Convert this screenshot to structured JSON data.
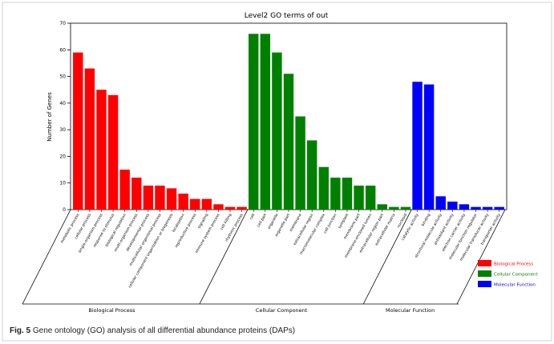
{
  "caption": {
    "label": "Fig. 5",
    "text": "Gene ontology (GO) analysis of all differential abundance proteins (DAPs)"
  },
  "colors": {
    "Biological Process": "#ff0000",
    "Cellular Component": "#008000",
    "Molecular Function": "#0000ff"
  },
  "chart_data": {
    "type": "bar",
    "title": "Level2 GO terms of out",
    "ylabel": "Number of Genes",
    "xlabel": "",
    "ylim": [
      0,
      70
    ],
    "yticks": [
      0,
      10,
      20,
      30,
      40,
      50,
      60,
      70
    ],
    "grid": false,
    "legend_position": "right",
    "legend": [
      "Biological Process",
      "Cellular Component",
      "Molecular Function"
    ],
    "groups": [
      {
        "name": "Biological Process",
        "categories": [
          "metabolic process",
          "cellular process",
          "single-organism process",
          "response to stimulus",
          "biological regulation",
          "multi-organism process",
          "developmental process",
          "multicellular organismal process",
          "cellular component organization or biogenesis",
          "localization",
          "reproductive process",
          "signaling",
          "immune system process",
          "cell killing",
          "rhythmic process"
        ],
        "values": [
          59,
          53,
          45,
          43,
          15,
          12,
          9,
          9,
          8,
          6,
          4,
          4,
          2,
          1,
          1
        ]
      },
      {
        "name": "Cellular Component",
        "categories": [
          "cell",
          "cell part",
          "organelle",
          "organelle part",
          "membrane",
          "extracellular region",
          "macromolecular complex",
          "cell junction",
          "symplast",
          "membrane part",
          "membrane-enclosed lumen",
          "extracellular region part",
          "extracellular matrix",
          "nucleoid"
        ],
        "values": [
          66,
          66,
          59,
          51,
          35,
          26,
          16,
          12,
          12,
          9,
          9,
          2,
          1,
          1
        ]
      },
      {
        "name": "Molecular Function",
        "categories": [
          "catalytic activity",
          "binding",
          "structural molecule activity",
          "antioxidant activity",
          "electron carrier activity",
          "molecular function regulator",
          "molecular transducer activity",
          "transporter activity"
        ],
        "values": [
          48,
          47,
          5,
          3,
          2,
          1,
          1,
          1
        ]
      }
    ]
  }
}
